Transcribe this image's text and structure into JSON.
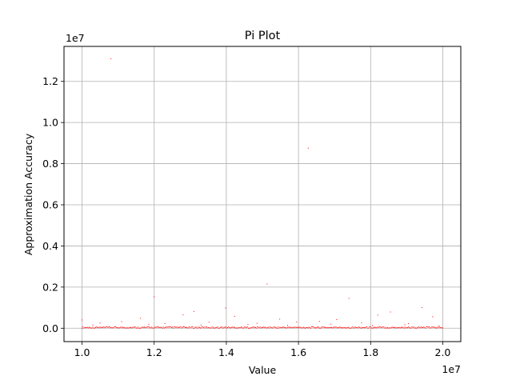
{
  "chart_data": {
    "type": "scatter",
    "title": "Pi Plot",
    "xlabel": "Value",
    "ylabel": "Approximation Accuracy",
    "x_multiplier_label": "1e7",
    "y_multiplier_label": "1e7",
    "x_scale": 10000000,
    "y_scale": 10000000,
    "xlim": [
      9500000,
      20500000
    ],
    "ylim": [
      -650000,
      13700000
    ],
    "x_ticks": [
      10000000,
      12000000,
      14000000,
      16000000,
      18000000,
      20000000
    ],
    "x_tick_labels": [
      "1.0",
      "1.2",
      "1.4",
      "1.6",
      "1.8",
      "2.0"
    ],
    "y_ticks": [
      0,
      2000000,
      4000000,
      6000000,
      8000000,
      10000000,
      12000000
    ],
    "y_tick_labels": [
      "0.0",
      "0.2",
      "0.4",
      "0.6",
      "0.8",
      "1.0",
      "1.2"
    ],
    "grid": true,
    "marker_color": "#ff0000",
    "outliers": [
      {
        "x": 10800000,
        "y": 13100000
      },
      {
        "x": 16270000,
        "y": 8750000
      },
      {
        "x": 15130000,
        "y": 2150000
      },
      {
        "x": 12000000,
        "y": 1530000
      },
      {
        "x": 17400000,
        "y": 1450000
      },
      {
        "x": 13980000,
        "y": 980000
      },
      {
        "x": 19420000,
        "y": 1000000
      },
      {
        "x": 13100000,
        "y": 810000
      },
      {
        "x": 18550000,
        "y": 790000
      },
      {
        "x": 12800000,
        "y": 650000
      },
      {
        "x": 18200000,
        "y": 640000
      },
      {
        "x": 14230000,
        "y": 580000
      },
      {
        "x": 19720000,
        "y": 560000
      },
      {
        "x": 11620000,
        "y": 480000
      },
      {
        "x": 15480000,
        "y": 440000
      },
      {
        "x": 17060000,
        "y": 420000
      },
      {
        "x": 10000000,
        "y": 400000
      },
      {
        "x": 16580000,
        "y": 330000
      },
      {
        "x": 11100000,
        "y": 320000
      },
      {
        "x": 13520000,
        "y": 290000
      },
      {
        "x": 15950000,
        "y": 300000
      },
      {
        "x": 17750000,
        "y": 260000
      },
      {
        "x": 10500000,
        "y": 250000
      },
      {
        "x": 12300000,
        "y": 230000
      },
      {
        "x": 14850000,
        "y": 240000
      },
      {
        "x": 19050000,
        "y": 220000
      },
      {
        "x": 16900000,
        "y": 200000
      },
      {
        "x": 11850000,
        "y": 190000
      },
      {
        "x": 14600000,
        "y": 180000
      },
      {
        "x": 18950000,
        "y": 170000
      },
      {
        "x": 10300000,
        "y": 160000
      },
      {
        "x": 13300000,
        "y": 150000
      },
      {
        "x": 15700000,
        "y": 140000
      },
      {
        "x": 18050000,
        "y": 130000
      },
      {
        "x": 19900000,
        "y": 120000
      }
    ],
    "baseline": {
      "x_start": 10000000,
      "x_end": 20000000,
      "count": 400,
      "y_max": 70000
    }
  }
}
